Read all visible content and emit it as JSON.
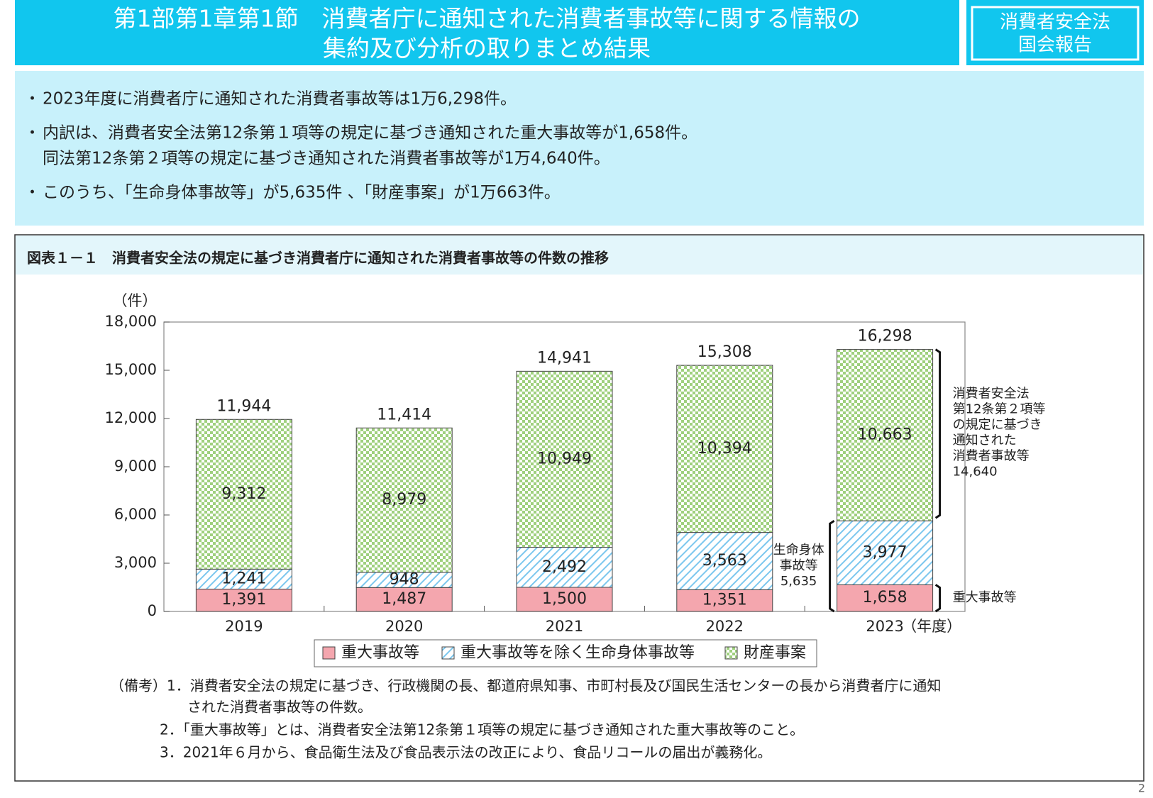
{
  "header": {
    "title": [
      "第1部第1章第1節　消費者庁に通知された消費者事故等に関する情報の",
      "集約及び分析の取りまとめ結果"
    ],
    "badge": [
      "消費者安全法",
      "国会報告"
    ]
  },
  "bullets": [
    [
      "2023年度に消費者庁に通知された消費者事故等は1万6,298件。"
    ],
    [
      "内訳は、消費者安全法第12条第１項等の規定に基づき通知された重大事故等が1,658件。",
      "同法第12条第２項等の規定に基づき通知された消費者事故等が1万4,640件。"
    ],
    [
      "このうち、「生命身体事故等」が5,635件 、「財産事案」が1万663件。"
    ]
  ],
  "chart_data": {
    "type": "bar",
    "stacked": true,
    "title": "図表１－１　消費者安全法の規定に基づき消費者庁に通知された消費者事故等の件数の推移",
    "y_label": "（件）",
    "x_unit": "（年度）",
    "categories": [
      "2019",
      "2020",
      "2021",
      "2022",
      "2023"
    ],
    "ylim": [
      0,
      18000
    ],
    "yticks": [
      0,
      {
        "value": 3000,
        "label": "3,000"
      },
      {
        "value": 6000,
        "label": "6,000"
      },
      {
        "value": 9000,
        "label": "9,000"
      },
      {
        "value": 12000,
        "label": "12,000"
      },
      {
        "value": 15000,
        "label": "15,000"
      },
      {
        "value": 18000,
        "label": "18,000"
      }
    ],
    "series": [
      {
        "name": "重大事故等",
        "color": "#f4a6ae",
        "pattern": "solid",
        "values": [
          1391,
          1487,
          1500,
          1351,
          1658
        ],
        "value_labels": [
          "1,391",
          "1,487",
          "1,500",
          "1,351",
          "1,658"
        ]
      },
      {
        "name": "重大事故等を除く生命身体事故等",
        "color": "#7cc7ee",
        "pattern": "hatch",
        "values": [
          1241,
          948,
          2492,
          3563,
          3977
        ],
        "value_labels": [
          "1,241",
          "948",
          "2,492",
          "3,563",
          "3,977"
        ]
      },
      {
        "name": "財産事案",
        "color": "#9fd07e",
        "pattern": "checker",
        "values": [
          9312,
          8979,
          10949,
          10394,
          10663
        ],
        "value_labels": [
          "9,312",
          "8,979",
          "10,949",
          "10,394",
          "10,663"
        ]
      }
    ],
    "totals": {
      "values": [
        11944,
        11414,
        14941,
        15308,
        16298
      ],
      "value_labels": [
        "11,944",
        "11,414",
        "14,941",
        "15,308",
        "16,298"
      ]
    },
    "annotations": {
      "upper": [
        "消費者安全法",
        "第12条第２項等",
        "の規定に基づき",
        "通知された",
        "消費者事故等",
        "14,640"
      ],
      "life": [
        "生命身体",
        "事故等",
        "5,635"
      ],
      "serious": "重大事故等"
    },
    "legend": "bottom"
  },
  "notes": [
    "（備考）1．消費者安全法の規定に基づき、行政機関の長、都道府県知事、市町村長及び国民生活センターの長から消費者庁に通知",
    "された消費者事故等の件数。",
    "2．「重大事故等」とは、消費者安全法第12条第１項等の規定に基づき通知された重大事故等のこと。",
    "3．2021年６月から、食品衛生法及び食品表示法の改正により、食品リコールの届出が義務化。"
  ],
  "page_number": "2"
}
